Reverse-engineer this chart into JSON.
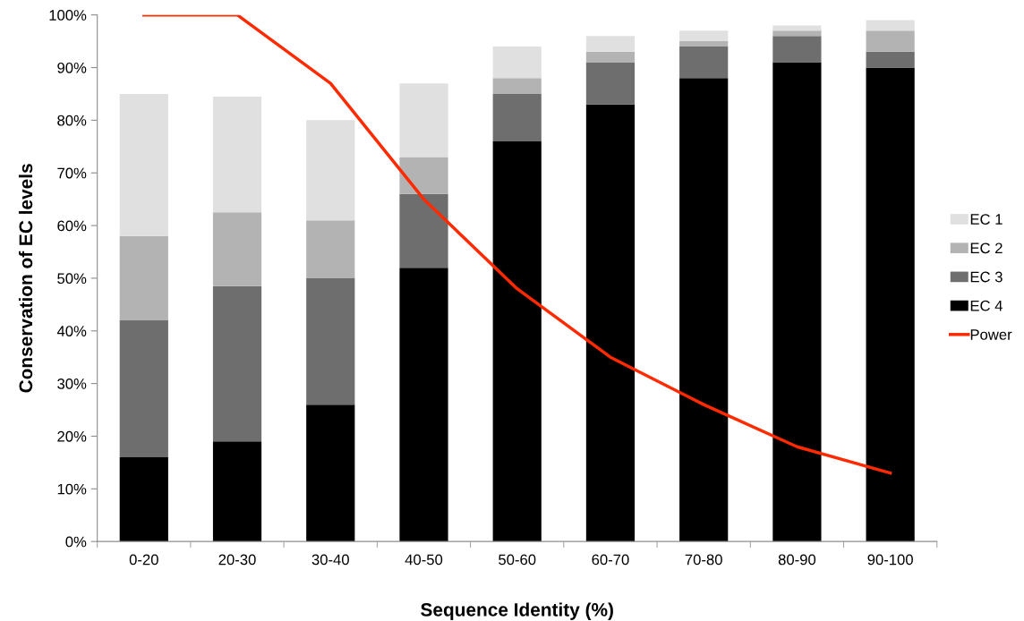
{
  "chart_data": {
    "type": "bar",
    "stacked": true,
    "xlabel": "Sequence Identity (%)",
    "ylabel": "Conservation of EC levels",
    "categories": [
      "0-20",
      "20-30",
      "30-40",
      "40-50",
      "50-60",
      "60-70",
      "70-80",
      "80-90",
      "90-100"
    ],
    "series": [
      {
        "name": "EC 4",
        "color": "#000000",
        "values": [
          16,
          19,
          26,
          52,
          76,
          83,
          88,
          91,
          90
        ]
      },
      {
        "name": "EC 3",
        "color": "#6e6e6e",
        "values": [
          26,
          29.5,
          24,
          14,
          9,
          8,
          6,
          5,
          3
        ]
      },
      {
        "name": "EC 2",
        "color": "#b3b3b3",
        "values": [
          16,
          14,
          11,
          7,
          3,
          2,
          1,
          1,
          4
        ]
      },
      {
        "name": "EC 1",
        "color": "#e0e0e0",
        "values": [
          27,
          22,
          19,
          14,
          6,
          3,
          2,
          1,
          2
        ]
      },
      {
        "name": "Power",
        "type": "line",
        "color": "#ff2a00",
        "values": [
          100,
          100,
          87,
          65,
          48,
          35,
          26,
          18,
          13
        ]
      }
    ],
    "ylim": [
      0,
      100
    ],
    "yticks": [
      {
        "value": 0,
        "label": "0%"
      },
      {
        "value": 10,
        "label": "10%"
      },
      {
        "value": 20,
        "label": "20%"
      },
      {
        "value": 30,
        "label": "30%"
      },
      {
        "value": 40,
        "label": "40%"
      },
      {
        "value": 50,
        "label": "50%"
      },
      {
        "value": 60,
        "label": "60%"
      },
      {
        "value": 70,
        "label": "70%"
      },
      {
        "value": 80,
        "label": "80%"
      },
      {
        "value": 90,
        "label": "90%"
      },
      {
        "value": 100,
        "label": "100%"
      }
    ],
    "legend": "right",
    "grid": false
  }
}
